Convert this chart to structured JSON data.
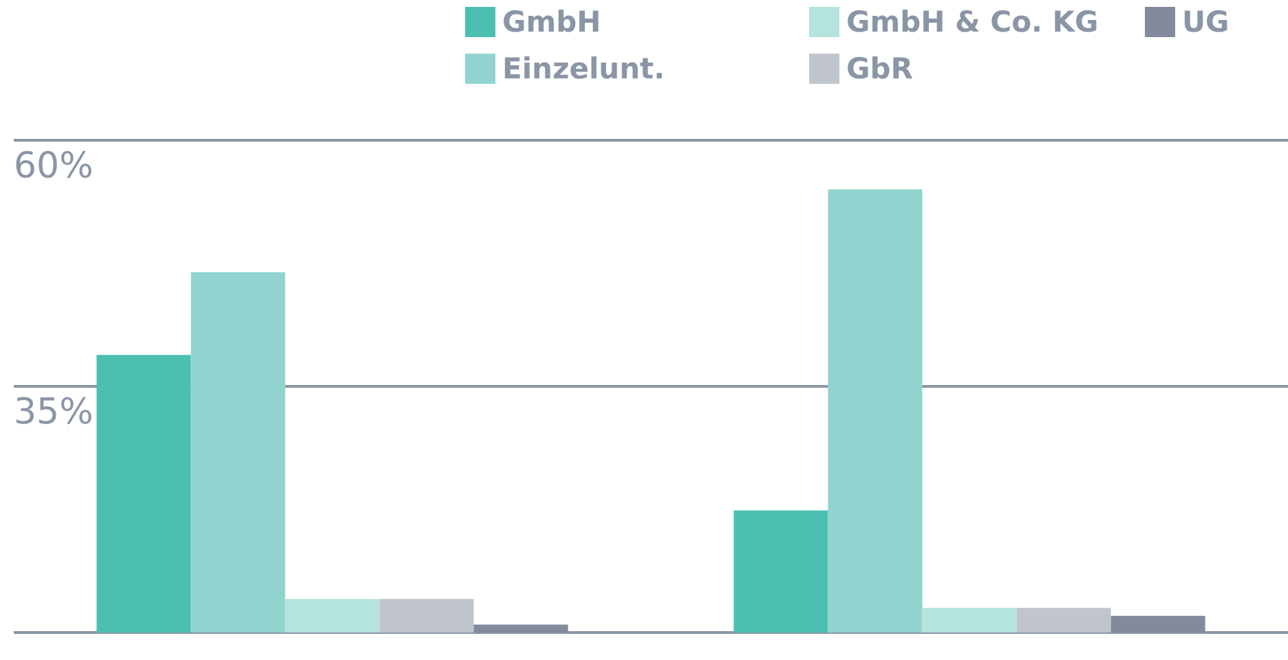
{
  "chart_data": {
    "type": "bar",
    "categories": [
      null,
      null
    ],
    "series": [
      {
        "name": "GmbH",
        "color": "#4bc0b2",
        "values": [
          38.2,
          22.4
        ]
      },
      {
        "name": "Einzelunt.",
        "color": "#91d4cf",
        "values": [
          46.6,
          55
        ]
      },
      {
        "name": "GmbH & Co. KG",
        "color": "#b5e3dd",
        "values": [
          13.4,
          12.5
        ]
      },
      {
        "name": "GbR",
        "color": "#c0c5cc",
        "values": [
          13.4,
          12.5
        ]
      },
      {
        "name": "UG",
        "color": "#828a9b",
        "values": [
          10.8,
          11.7
        ]
      }
    ],
    "ylim": [
      10,
      60
    ],
    "yticks": [
      {
        "value": 10,
        "label": null
      },
      {
        "value": 35,
        "label": "35%"
      },
      {
        "value": 60,
        "label": "60%"
      }
    ],
    "grid": "y",
    "legend": "top"
  }
}
